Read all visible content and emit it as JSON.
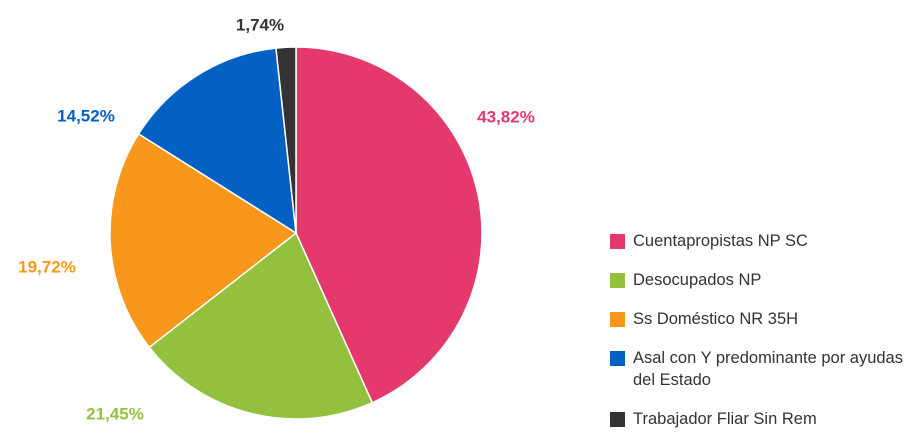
{
  "chart_data": {
    "type": "pie",
    "categories": [
      "Cuentapropistas NP SC",
      "Desocupados NP",
      "Ss Doméstico NR 35H",
      "Asal con Y predominante por ayudas del Estado",
      "Trabajador Fliar Sin Rem"
    ],
    "values": [
      43.82,
      21.45,
      19.72,
      14.52,
      1.74
    ],
    "value_labels": [
      "43,82%",
      "21,45%",
      "19,72%",
      "14,52%",
      "1,74%"
    ],
    "colors": [
      "#e5396e",
      "#93c13e",
      "#f7971c",
      "#0560c4",
      "#333333"
    ]
  }
}
